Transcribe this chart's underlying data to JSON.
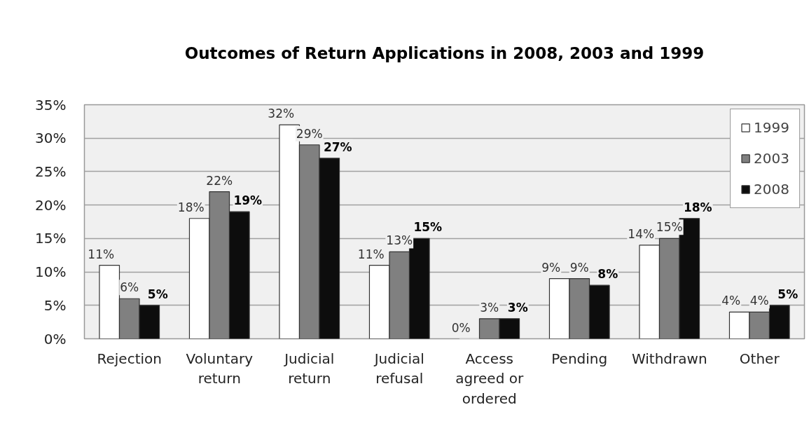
{
  "chart_data": {
    "type": "bar",
    "title": "Outcomes of Return Applications in 2008, 2003 and 1999",
    "categories": [
      "Rejection",
      "Voluntary return",
      "Judicial return",
      "Judicial refusal",
      "Access agreed or ordered",
      "Pending",
      "Withdrawn",
      "Other"
    ],
    "series": [
      {
        "name": "1999",
        "color": "#ffffff",
        "values": [
          11,
          18,
          32,
          11,
          0,
          9,
          14,
          4
        ],
        "value_labels": [
          "11%",
          "18%",
          "32%",
          "11%",
          "0%",
          "9%",
          "14%",
          "4%"
        ]
      },
      {
        "name": "2003",
        "color": "#808080",
        "values": [
          6,
          22,
          29,
          13,
          3,
          9,
          15,
          4
        ],
        "value_labels": [
          "6%",
          "22%",
          "29%",
          "13%",
          "3%",
          "9%",
          "15%",
          "4%"
        ]
      },
      {
        "name": "2008",
        "color": "#0d0d0d",
        "values": [
          5,
          19,
          27,
          15,
          3,
          8,
          18,
          5
        ],
        "value_labels": [
          "5%",
          "19%",
          "27%",
          "15%",
          "3%",
          "8%",
          "18%",
          "5%"
        ]
      }
    ],
    "ylim": [
      0,
      35
    ],
    "yticks": [
      {
        "value": 0,
        "label": "0%"
      },
      {
        "value": 5,
        "label": "5%"
      },
      {
        "value": 10,
        "label": "10%"
      },
      {
        "value": 15,
        "label": "15%"
      },
      {
        "value": 20,
        "label": "20%"
      },
      {
        "value": 25,
        "label": "25%"
      },
      {
        "value": 30,
        "label": "30%"
      },
      {
        "value": 35,
        "label": "35%"
      }
    ],
    "grid": "y",
    "legend": "top right"
  }
}
